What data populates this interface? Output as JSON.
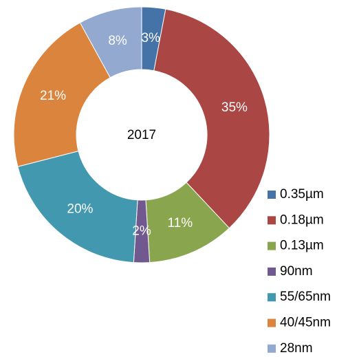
{
  "chart_data": {
    "type": "donut",
    "title": "2017",
    "categories": [
      "0.35µm",
      "0.18µm",
      "0.13µm",
      "90nm",
      "55/65nm",
      "40/45nm",
      "28nm"
    ],
    "values": [
      3,
      35,
      11,
      2,
      20,
      21,
      8
    ],
    "value_labels": [
      "3%",
      "35%",
      "11%",
      "2%",
      "20%",
      "21%",
      "8%"
    ],
    "colors": [
      "#4572a7",
      "#aa4643",
      "#89a54e",
      "#71588f",
      "#4198af",
      "#db843d",
      "#93a9cf"
    ],
    "legend": "bottom-right"
  }
}
